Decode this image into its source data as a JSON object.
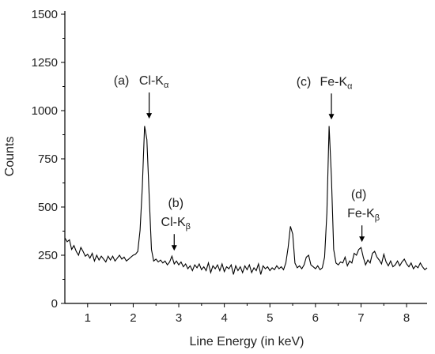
{
  "chart_data": {
    "type": "line",
    "xlabel": "Line Energy (in keV)",
    "ylabel": "Counts",
    "xlim": [
      0.5,
      8.45
    ],
    "ylim": [
      0,
      1500
    ],
    "x_ticks": [
      1,
      2,
      3,
      4,
      5,
      6,
      7,
      8
    ],
    "y_ticks": [
      0,
      250,
      500,
      750,
      1000,
      1250,
      1500
    ],
    "grid": false,
    "line_color": "#000000",
    "series": [
      {
        "x": [
          0.5,
          0.55,
          0.6,
          0.65,
          0.7,
          0.75,
          0.8,
          0.85,
          0.9,
          0.95,
          1.0,
          1.05,
          1.1,
          1.15,
          1.2,
          1.25,
          1.3,
          1.35,
          1.4,
          1.45,
          1.5,
          1.55,
          1.6,
          1.65,
          1.7,
          1.75,
          1.8,
          1.85,
          1.9,
          1.95,
          2.0,
          2.05,
          2.1,
          2.15,
          2.2,
          2.25,
          2.3,
          2.35,
          2.4,
          2.45,
          2.5,
          2.55,
          2.6,
          2.65,
          2.7,
          2.75,
          2.8,
          2.85,
          2.9,
          2.95,
          3.0,
          3.05,
          3.1,
          3.15,
          3.2,
          3.25,
          3.3,
          3.35,
          3.4,
          3.45,
          3.5,
          3.55,
          3.6,
          3.65,
          3.7,
          3.75,
          3.8,
          3.85,
          3.9,
          3.95,
          4.0,
          4.05,
          4.1,
          4.15,
          4.2,
          4.25,
          4.3,
          4.35,
          4.4,
          4.45,
          4.5,
          4.55,
          4.6,
          4.65,
          4.7,
          4.75,
          4.8,
          4.85,
          4.9,
          4.95,
          5.0,
          5.05,
          5.1,
          5.15,
          5.2,
          5.25,
          5.3,
          5.35,
          5.4,
          5.45,
          5.5,
          5.55,
          5.6,
          5.65,
          5.7,
          5.75,
          5.8,
          5.85,
          5.9,
          5.95,
          6.0,
          6.05,
          6.1,
          6.15,
          6.2,
          6.25,
          6.3,
          6.35,
          6.4,
          6.45,
          6.5,
          6.55,
          6.6,
          6.65,
          6.7,
          6.75,
          6.8,
          6.85,
          6.9,
          6.95,
          7.0,
          7.05,
          7.1,
          7.15,
          7.2,
          7.25,
          7.3,
          7.35,
          7.4,
          7.45,
          7.5,
          7.55,
          7.6,
          7.65,
          7.7,
          7.75,
          7.8,
          7.85,
          7.9,
          7.95,
          8.0,
          8.05,
          8.1,
          8.15,
          8.2,
          8.25,
          8.3,
          8.35,
          8.4,
          8.45
        ],
        "y": [
          340,
          320,
          330,
          280,
          300,
          270,
          250,
          290,
          270,
          245,
          255,
          235,
          260,
          220,
          250,
          225,
          245,
          230,
          215,
          245,
          225,
          245,
          220,
          235,
          250,
          230,
          240,
          220,
          230,
          240,
          250,
          255,
          270,
          380,
          600,
          920,
          850,
          560,
          280,
          220,
          230,
          215,
          225,
          210,
          220,
          200,
          215,
          245,
          205,
          220,
          200,
          215,
          190,
          205,
          180,
          195,
          170,
          200,
          185,
          205,
          175,
          190,
          170,
          210,
          160,
          195,
          180,
          200,
          170,
          205,
          165,
          190,
          180,
          200,
          150,
          195,
          170,
          190,
          160,
          195,
          175,
          200,
          160,
          185,
          170,
          205,
          150,
          195,
          180,
          190,
          170,
          185,
          175,
          195,
          180,
          190,
          175,
          210,
          290,
          400,
          360,
          210,
          185,
          195,
          180,
          200,
          240,
          250,
          200,
          190,
          180,
          195,
          175,
          185,
          240,
          470,
          920,
          660,
          280,
          210,
          200,
          215,
          210,
          240,
          195,
          220,
          210,
          260,
          250,
          280,
          290,
          240,
          200,
          225,
          210,
          260,
          270,
          240,
          225,
          205,
          255,
          215,
          195,
          220,
          190,
          200,
          220,
          195,
          215,
          230,
          205,
          190,
          210,
          180,
          195,
          185,
          210,
          190,
          175,
          185
        ]
      }
    ],
    "annotations": [
      {
        "letter": "(a)",
        "element": "Cl-K",
        "sub": "α",
        "peak_x": 2.35,
        "peak_y": 930
      },
      {
        "letter": "(b)",
        "element": "Cl-K",
        "sub": "β",
        "peak_x": 2.9,
        "peak_y": 245
      },
      {
        "letter": "(c)",
        "element": "Fe-K",
        "sub": "α",
        "peak_x": 6.35,
        "peak_y": 925
      },
      {
        "letter": "(d)",
        "element": "Fe-K",
        "sub": "β",
        "peak_x": 7.02,
        "peak_y": 290
      }
    ]
  }
}
